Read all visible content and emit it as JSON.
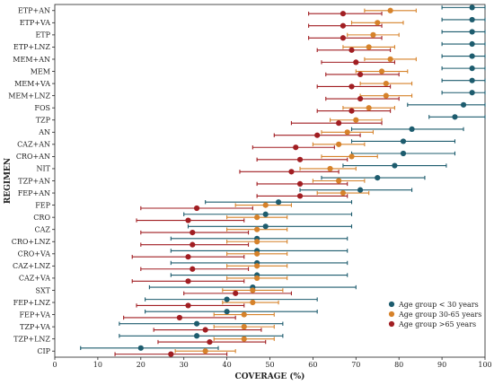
{
  "chart_data": {
    "type": "scatter",
    "orientation": "horizontal",
    "title": "",
    "xlabel": "COVERAGE (%)",
    "ylabel": "REGIMEN",
    "xlim": [
      0,
      100
    ],
    "xticks": [
      0,
      10,
      20,
      30,
      40,
      50,
      60,
      70,
      80,
      90,
      100
    ],
    "grid": false,
    "legend_position": "bottom-right",
    "categories": [
      "ETP+AN",
      "ETP+VA",
      "ETP",
      "ETP+LNZ",
      "MEM+AN",
      "MEM",
      "MEM+VA",
      "MEM+LNZ",
      "FOS",
      "TZP",
      "AN",
      "CAZ+AN",
      "CRO+AN",
      "NIT",
      "TZP+AN",
      "FEP+AN",
      "FEP",
      "CRO",
      "CAZ",
      "CRO+LNZ",
      "CRO+VA",
      "CAZ+LNZ",
      "CAZ+VA",
      "SXT",
      "FEP+LNZ",
      "FEP+VA",
      "TZP+VA",
      "TZP+LNZ",
      "CIP"
    ],
    "series": [
      {
        "name": "Age group < 30 years",
        "color": "#1d5c6e",
        "values": [
          97,
          97,
          97,
          97,
          97,
          97,
          97,
          97,
          95,
          93,
          83,
          81,
          81,
          79,
          75,
          71,
          52,
          49,
          49,
          47,
          47,
          47,
          47,
          46,
          40,
          40,
          33,
          33,
          20
        ],
        "lower": [
          90,
          90,
          90,
          90,
          90,
          90,
          90,
          90,
          82,
          87,
          69,
          69,
          69,
          67,
          62,
          57,
          35,
          30,
          31,
          27,
          27,
          27,
          27,
          22,
          21,
          21,
          15,
          15,
          6
        ],
        "upper": [
          100,
          100,
          100,
          100,
          100,
          100,
          100,
          100,
          100,
          100,
          95,
          93,
          93,
          91,
          86,
          83,
          69,
          69,
          69,
          68,
          68,
          68,
          68,
          70,
          61,
          61,
          53,
          53,
          38
        ]
      },
      {
        "name": "Age group 30-65 years",
        "color": "#d6822a",
        "values": [
          78,
          75,
          74,
          73,
          78,
          76,
          77,
          77,
          73,
          70,
          68,
          66,
          69,
          64,
          66,
          67,
          49,
          47,
          47,
          47,
          47,
          47,
          47,
          46,
          46,
          44,
          44,
          44,
          35
        ],
        "lower": [
          72,
          69,
          68,
          67,
          72,
          70,
          71,
          71,
          67,
          64,
          62,
          60,
          62,
          57,
          60,
          61,
          42,
          40,
          40,
          40,
          40,
          40,
          40,
          39,
          39,
          37,
          37,
          37,
          28
        ],
        "upper": [
          84,
          81,
          80,
          79,
          84,
          82,
          83,
          83,
          79,
          76,
          74,
          72,
          75,
          70,
          72,
          73,
          55,
          54,
          54,
          54,
          54,
          54,
          54,
          53,
          52,
          51,
          51,
          51,
          42
        ]
      },
      {
        "name": "Age group >65 years",
        "color": "#a11e22",
        "values": [
          67,
          67,
          67,
          69,
          70,
          71,
          69,
          71,
          69,
          66,
          61,
          56,
          57,
          55,
          57,
          57,
          33,
          31,
          32,
          32,
          31,
          32,
          31,
          42,
          31,
          29,
          35,
          36,
          27
        ],
        "lower": [
          59,
          59,
          59,
          61,
          62,
          63,
          61,
          63,
          61,
          55,
          51,
          46,
          47,
          43,
          47,
          47,
          20,
          19,
          20,
          20,
          18,
          20,
          18,
          30,
          19,
          16,
          23,
          24,
          14
        ],
        "upper": [
          76,
          76,
          76,
          78,
          79,
          80,
          78,
          80,
          78,
          76,
          71,
          65,
          68,
          66,
          68,
          68,
          46,
          44,
          45,
          45,
          44,
          45,
          44,
          55,
          44,
          42,
          48,
          49,
          40
        ]
      }
    ]
  }
}
